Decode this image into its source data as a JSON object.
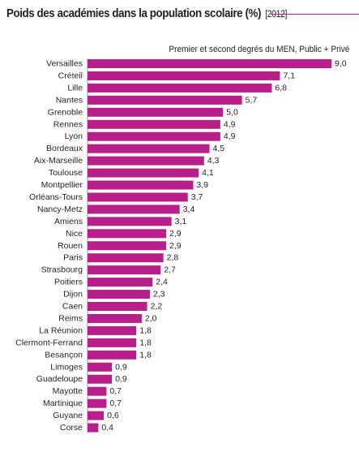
{
  "header": {
    "title": "Poids des académies dans la population scolaire (%)",
    "year": "[2012]"
  },
  "chart_data": {
    "type": "bar",
    "orientation": "horizontal",
    "title": "Poids des académies dans la population scolaire (%) [2012]",
    "subtitle": "Premier et second degrés du MEN, Public + Privé",
    "categories": [
      "Versailles",
      "Créteil",
      "Lille",
      "Nantes",
      "Grenoble",
      "Rennes",
      "Lyon",
      "Bordeaux",
      "Aix-Marseille",
      "Toulouse",
      "Montpellier",
      "Orléans-Tours",
      "Nancy-Metz",
      "Amiens",
      "Nice",
      "Rouen",
      "Paris",
      "Strasbourg",
      "Poitiers",
      "Dijon",
      "Caen",
      "Reims",
      "La Réunion",
      "Clermont-Ferrand",
      "Besançon",
      "Limoges",
      "Guadeloupe",
      "Mayotte",
      "Martinique",
      "Guyane",
      "Corse"
    ],
    "values": [
      9.0,
      7.1,
      6.8,
      5.7,
      5.0,
      4.9,
      4.9,
      4.5,
      4.3,
      4.1,
      3.9,
      3.7,
      3.4,
      3.1,
      2.9,
      2.9,
      2.8,
      2.7,
      2.4,
      2.3,
      2.2,
      2.0,
      1.8,
      1.8,
      1.8,
      0.9,
      0.9,
      0.7,
      0.7,
      0.6,
      0.4
    ],
    "value_labels": [
      "9,0",
      "7,1",
      "6,8",
      "5,7",
      "5,0",
      "4,9",
      "4,9",
      "4,5",
      "4,3",
      "4,1",
      "3,9",
      "3,7",
      "3,4",
      "3,1",
      "2,9",
      "2,9",
      "2,8",
      "2,7",
      "2,4",
      "2,3",
      "2,2",
      "2,0",
      "1,8",
      "1,8",
      "1,8",
      "0,9",
      "0,9",
      "0,7",
      "0,7",
      "0,6",
      "0,4"
    ],
    "xlim": [
      0,
      9.0
    ],
    "grid": false,
    "bar_color": "#b81f8a",
    "accent_color": "#b81f8a"
  }
}
